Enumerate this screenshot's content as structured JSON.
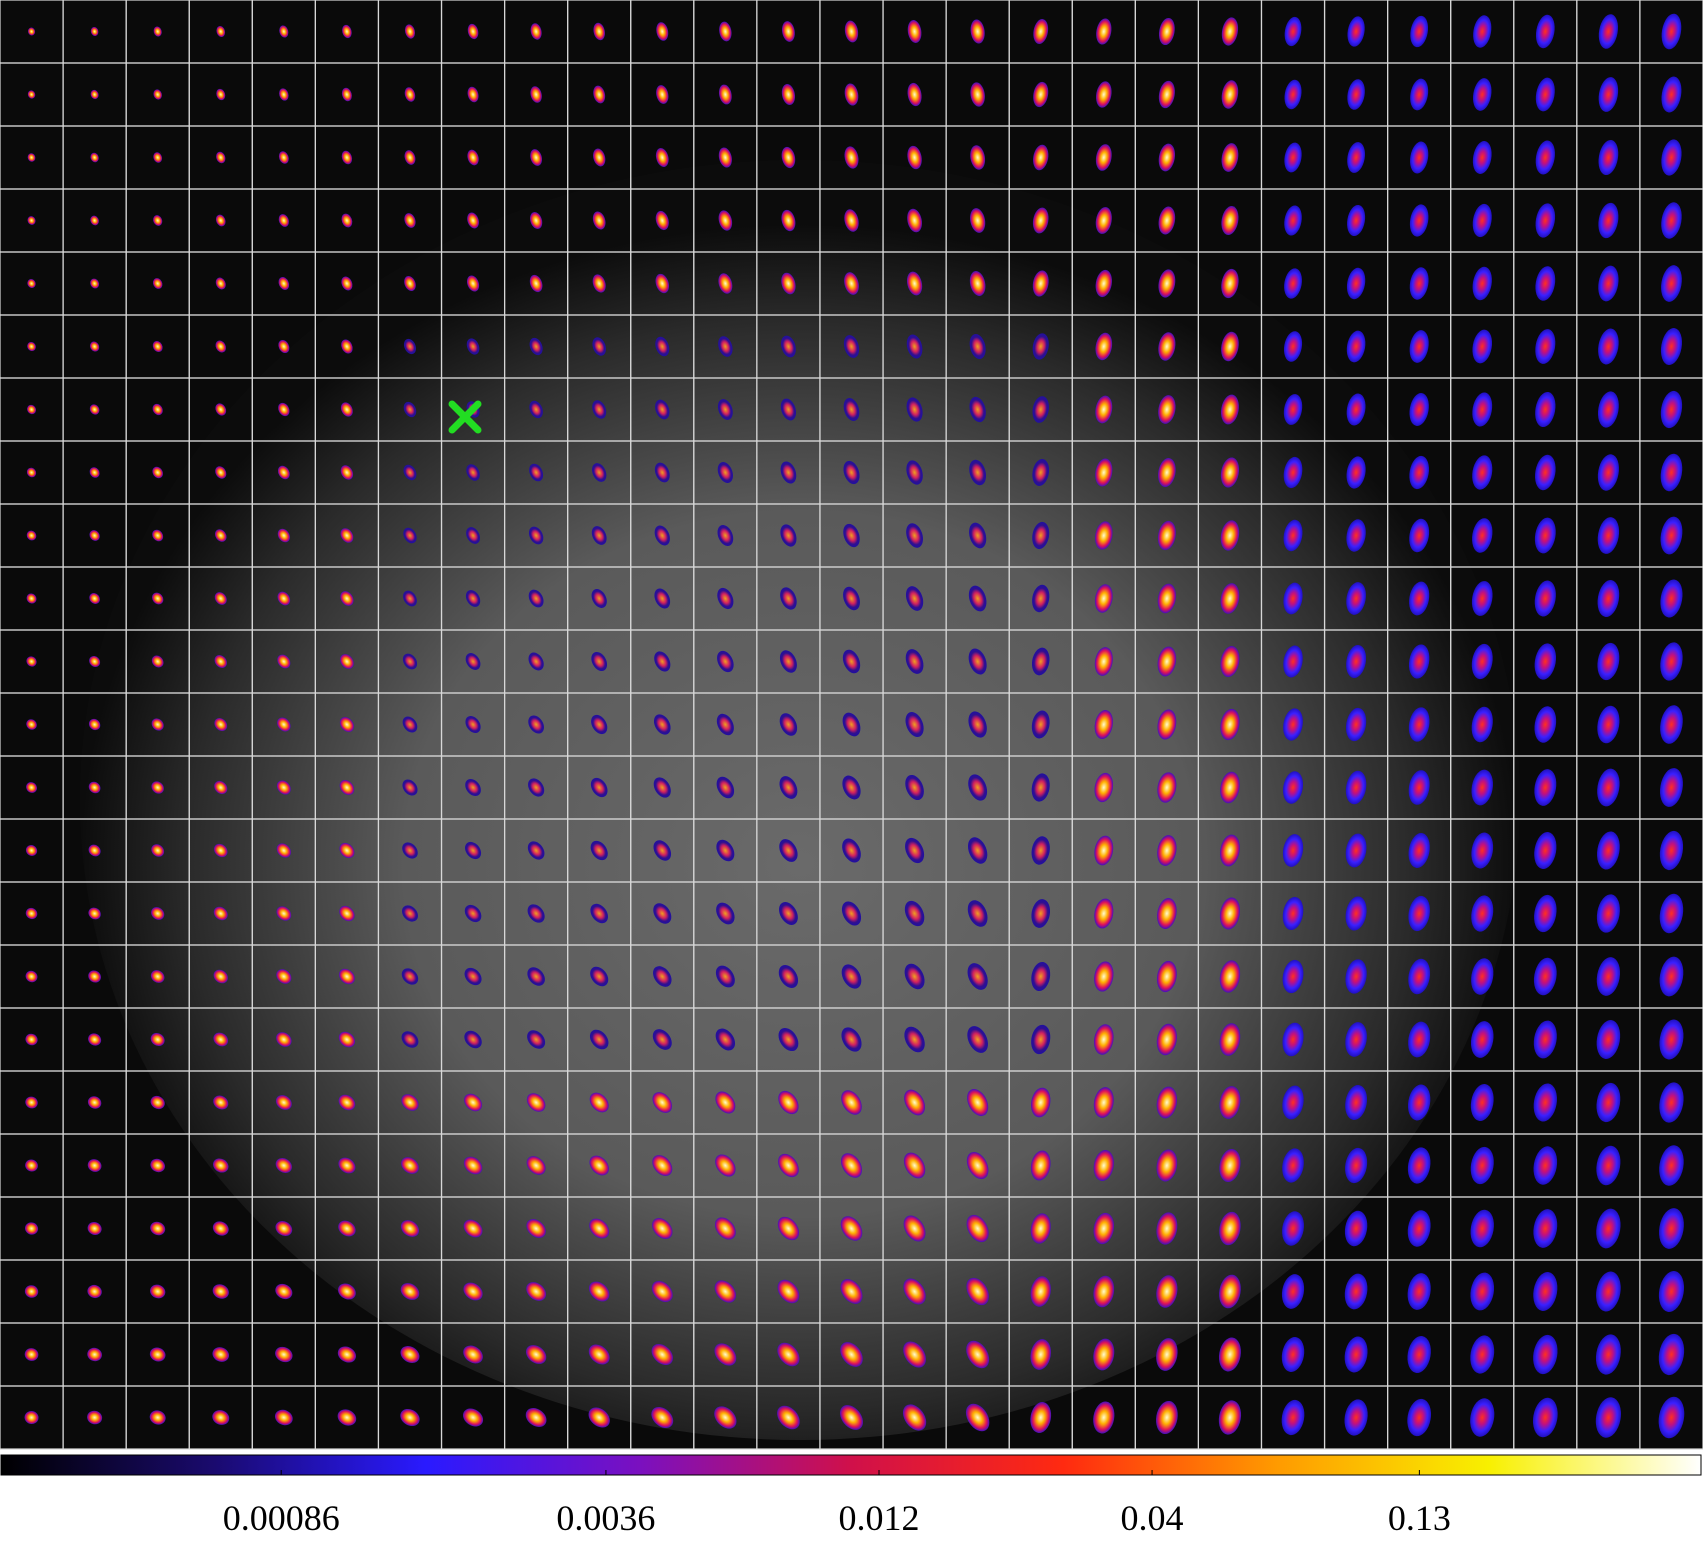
{
  "colorbar": {
    "scale": "log",
    "limits": [
      0.00025,
      0.45
    ],
    "ticks": [
      0.00086,
      0.0036,
      0.012,
      0.04,
      0.13
    ],
    "colormap": [
      "#000000",
      "#1a0a6e",
      "#2a1aff",
      "#7a10c0",
      "#d0104a",
      "#ff2a10",
      "#ff9a00",
      "#f8f000",
      "#ffffff"
    ]
  }
}
